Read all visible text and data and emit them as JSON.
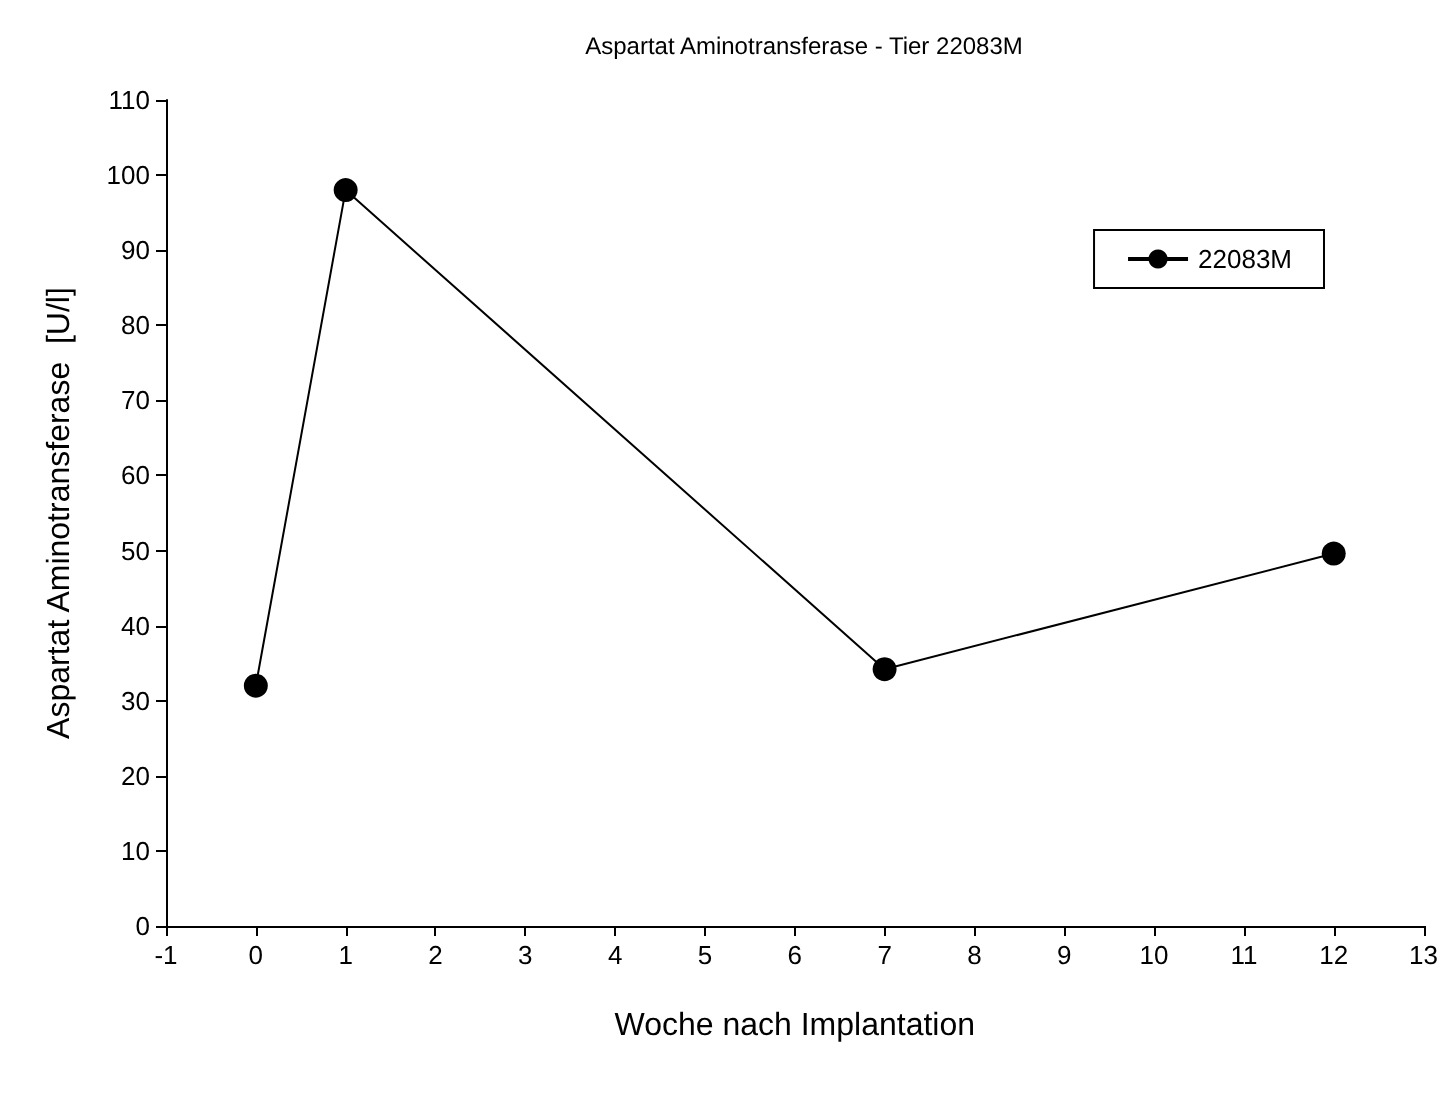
{
  "chart_data": {
    "type": "line",
    "title": "Aspartat Aminotransferase - Tier 22083M",
    "xlabel": "Woche nach Implantation",
    "ylabel": "Aspartat Aminotransferase  [U/l]",
    "x": [
      0,
      1,
      7,
      12
    ],
    "series": [
      {
        "name": "22083M",
        "color": "#000000",
        "values": [
          32,
          98,
          34.2,
          49.6
        ]
      }
    ],
    "xlim": [
      -1,
      13
    ],
    "xticks": [
      -1,
      0,
      1,
      2,
      3,
      4,
      5,
      6,
      7,
      8,
      9,
      10,
      11,
      12,
      13
    ],
    "ylim": [
      0,
      110
    ],
    "yticks": [
      0,
      10,
      20,
      30,
      40,
      50,
      60,
      70,
      80,
      90,
      100,
      110
    ],
    "grid": false,
    "legend": "top right",
    "marker": "circle",
    "line_style": "solid"
  }
}
